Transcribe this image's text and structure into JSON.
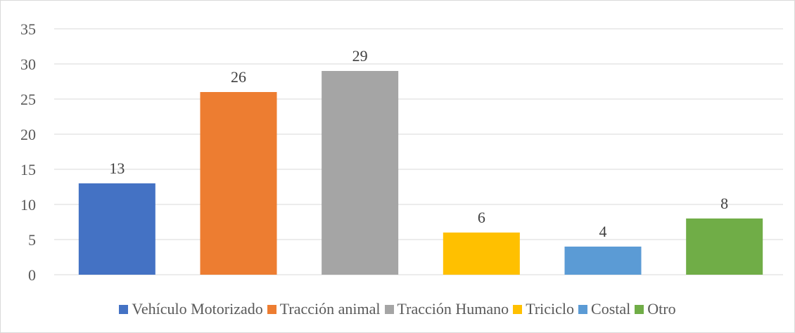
{
  "chart_data": {
    "type": "bar",
    "title": "",
    "xlabel": "",
    "ylabel": "",
    "categories": [
      "Vehículo Motorizado",
      "Tracción animal",
      "Tracción Humano",
      "Triciclo",
      "Costal",
      "Otro"
    ],
    "values": [
      13,
      26,
      29,
      6,
      4,
      8
    ],
    "data_labels": [
      "13",
      "26",
      "29",
      "6",
      "4",
      "8"
    ],
    "colors": [
      "#4472c4",
      "#ed7d31",
      "#a5a5a5",
      "#ffc000",
      "#5b9bd5",
      "#70ad47"
    ],
    "ylim": [
      0,
      35
    ],
    "yticks": [
      0,
      5,
      10,
      15,
      20,
      25,
      30,
      35
    ],
    "ytick_labels": [
      "0",
      "5",
      "10",
      "15",
      "20",
      "25",
      "30",
      "35"
    ],
    "grid": true,
    "grid_color": "#d9d9d9",
    "legend_position": "bottom"
  }
}
